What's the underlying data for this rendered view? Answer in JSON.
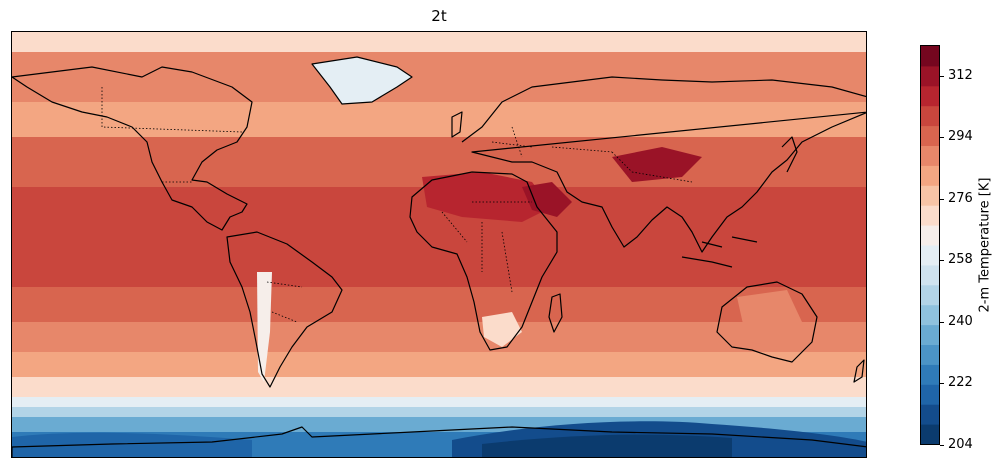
{
  "title": "2t",
  "colorbar": {
    "label": "2-m Temperature  [K]",
    "min": 204,
    "max": 321,
    "ticks": [
      "204",
      "222",
      "240",
      "258",
      "276",
      "294",
      "312"
    ],
    "colors": [
      "#0b3b6e",
      "#134c8c",
      "#1f65a8",
      "#2f7bb8",
      "#4b94c6",
      "#6aabd2",
      "#8fc2de",
      "#b2d4e7",
      "#cfe3ef",
      "#e4eef4",
      "#f6eeea",
      "#fbdccb",
      "#f7c4a6",
      "#f3a682",
      "#e7876a",
      "#d8654f",
      "#c9463d",
      "#b7252f",
      "#9a1327",
      "#75061f"
    ]
  },
  "map": {
    "projection": "PlateCarree",
    "field": "2-m Temperature",
    "features": [
      "coastlines",
      "country borders"
    ]
  }
}
